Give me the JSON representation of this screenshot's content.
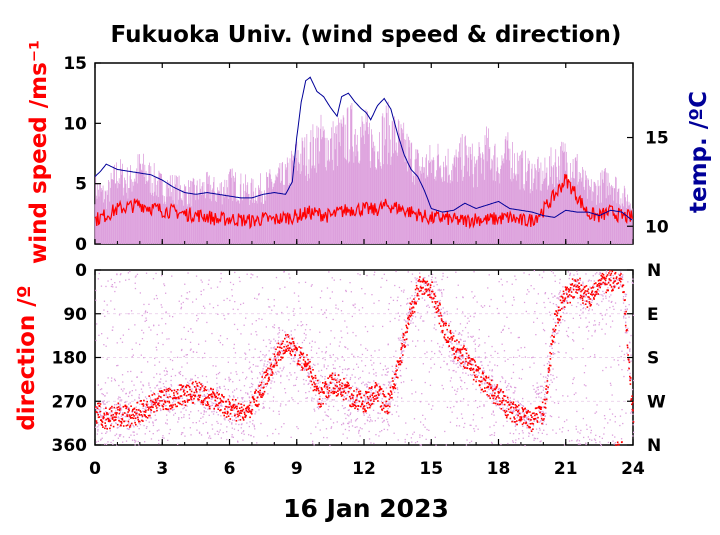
{
  "chart_data": [
    {
      "type": "line",
      "title": "Fukuoka Univ. (wind speed & direction)",
      "ylabel": "wind speed /ms⁻¹",
      "y2label": "temp. /ºC",
      "xlabel": "16 Jan 2023",
      "xlim": [
        0,
        24
      ],
      "ylim": [
        0,
        15
      ],
      "y2lim": [
        9,
        19.2
      ],
      "x_ticks": [
        0,
        3,
        6,
        9,
        12,
        15,
        18,
        21,
        24
      ],
      "y_ticks": [
        0,
        5,
        10,
        15
      ],
      "y2_ticks": [
        10,
        15
      ],
      "colors": {
        "speed": "#ff0000",
        "gust": "#dda0dd",
        "temp": "#000099"
      },
      "series": [
        {
          "key": "mean_speed",
          "x": [
            0,
            0.5,
            1,
            1.5,
            2,
            2.5,
            3,
            3.5,
            4,
            4.5,
            5,
            5.5,
            6,
            6.5,
            7,
            7.5,
            8,
            8.5,
            9,
            9.5,
            10,
            10.5,
            11,
            11.5,
            12,
            12.5,
            13,
            13.5,
            14,
            14.5,
            15,
            15.5,
            16,
            16.5,
            17,
            17.5,
            18,
            18.5,
            19,
            19.5,
            20,
            20.5,
            21,
            21.5,
            22,
            22.5,
            23,
            23.5,
            24
          ],
          "values": [
            2.0,
            2.4,
            2.9,
            3.1,
            3.3,
            3.0,
            2.8,
            2.7,
            2.5,
            2.4,
            2.3,
            2.0,
            2.1,
            2.0,
            1.9,
            2.1,
            2.0,
            2.2,
            2.3,
            2.6,
            2.5,
            2.3,
            2.7,
            2.9,
            2.9,
            2.8,
            3.2,
            3.0,
            2.7,
            2.4,
            2.1,
            2.2,
            2.0,
            1.9,
            2.1,
            2.0,
            2.1,
            2.2,
            1.9,
            2.0,
            2.8,
            4.0,
            5.4,
            4.0,
            2.5,
            2.3,
            2.7,
            2.3,
            2.2
          ]
        },
        {
          "key": "gust_speed",
          "x": [
            0,
            0.5,
            1,
            1.5,
            2,
            2.5,
            3,
            3.5,
            4,
            4.5,
            5,
            5.5,
            6,
            6.5,
            7,
            7.5,
            8,
            8.5,
            9,
            9.5,
            10,
            10.5,
            11,
            11.5,
            12,
            12.5,
            13,
            13.5,
            14,
            14.5,
            15,
            15.5,
            16,
            16.5,
            17,
            17.5,
            18,
            18.5,
            19,
            19.5,
            20,
            20.5,
            21,
            21.5,
            22,
            22.5,
            23,
            23.5,
            24
          ],
          "values": [
            6.0,
            5.0,
            7.5,
            6.5,
            8.0,
            7.0,
            6.0,
            6.0,
            5.5,
            5.5,
            6.0,
            5.5,
            6.5,
            6.0,
            5.5,
            6.0,
            6.5,
            7.0,
            9.0,
            9.5,
            11.0,
            10.5,
            11.0,
            12.0,
            11.5,
            10.5,
            12.0,
            11.0,
            9.5,
            8.0,
            8.5,
            9.0,
            8.0,
            9.5,
            8.0,
            10.0,
            8.5,
            9.5,
            8.0,
            7.5,
            7.0,
            8.5,
            9.0,
            8.0,
            5.5,
            6.0,
            7.0,
            5.0,
            4.5
          ]
        },
        {
          "key": "temperature",
          "axis": "y2",
          "x": [
            0,
            0.25,
            0.5,
            1,
            1.5,
            2,
            2.5,
            3,
            3.5,
            4,
            4.5,
            5,
            5.5,
            6,
            6.5,
            7,
            7.5,
            8,
            8.5,
            8.8,
            9,
            9.2,
            9.4,
            9.6,
            9.9,
            10.2,
            10.5,
            10.8,
            11.0,
            11.3,
            11.6,
            11.9,
            12.1,
            12.3,
            12.6,
            12.9,
            13.2,
            13.5,
            13.8,
            14.1,
            14.4,
            14.7,
            15.0,
            15.5,
            16,
            16.5,
            17,
            17.5,
            18,
            18.5,
            19,
            19.5,
            20,
            20.5,
            21,
            21.5,
            22,
            22.5,
            23,
            23.5,
            24
          ],
          "values": [
            12.8,
            13.1,
            13.5,
            13.2,
            13.1,
            13.0,
            12.9,
            12.6,
            12.2,
            11.9,
            11.8,
            11.9,
            11.8,
            11.7,
            11.6,
            11.6,
            11.8,
            11.9,
            11.8,
            12.5,
            15.0,
            17.0,
            18.2,
            18.4,
            17.6,
            17.3,
            16.7,
            16.2,
            17.3,
            17.5,
            17.0,
            16.6,
            16.4,
            16.0,
            16.8,
            17.2,
            16.6,
            15.2,
            14.0,
            13.2,
            12.8,
            12.0,
            11.0,
            10.8,
            10.9,
            11.3,
            11.0,
            11.2,
            11.4,
            11.0,
            10.9,
            10.8,
            10.6,
            10.5,
            10.9,
            10.8,
            10.8,
            10.6,
            10.9,
            10.8,
            10.3
          ]
        }
      ]
    },
    {
      "type": "scatter",
      "ylabel": "direction /º",
      "xlim": [
        0,
        24
      ],
      "ylim": [
        360,
        0
      ],
      "x_ticks": [
        0,
        3,
        6,
        9,
        12,
        15,
        18,
        21,
        24
      ],
      "x_tick_labels": [
        "0",
        "3",
        "6",
        "9",
        "12",
        "15",
        "18",
        "21",
        "24"
      ],
      "y_ticks": [
        0,
        90,
        180,
        270,
        360
      ],
      "y_tick_labels": [
        "0",
        "90",
        "180",
        "270",
        "360"
      ],
      "y2_tick_labels": [
        "N",
        "E",
        "S",
        "W",
        "N"
      ],
      "colors": {
        "mean_dir": "#ff0000",
        "gust_dir": "#dda0dd"
      },
      "series": [
        {
          "key": "mean_direction",
          "x": [
            0,
            0.5,
            1,
            1.5,
            2,
            2.5,
            3,
            3.5,
            4,
            4.5,
            5,
            5.5,
            6,
            6.5,
            7,
            7.5,
            8,
            8.5,
            9,
            9.5,
            10,
            10.5,
            11,
            11.5,
            12,
            12.5,
            13,
            13.5,
            14,
            14.5,
            15,
            15.5,
            16,
            16.5,
            17,
            17.5,
            18,
            18.5,
            19,
            19.5,
            20,
            20.5,
            21,
            21.5,
            22,
            22.5,
            23,
            23.5,
            24
          ],
          "values": [
            290,
            305,
            295,
            300,
            290,
            275,
            265,
            260,
            255,
            250,
            260,
            270,
            285,
            290,
            280,
            230,
            180,
            150,
            170,
            200,
            260,
            230,
            240,
            265,
            270,
            250,
            280,
            200,
            90,
            30,
            40,
            110,
            160,
            180,
            210,
            240,
            260,
            290,
            300,
            310,
            290,
            100,
            50,
            30,
            60,
            30,
            20,
            10,
            320
          ]
        }
      ]
    }
  ]
}
